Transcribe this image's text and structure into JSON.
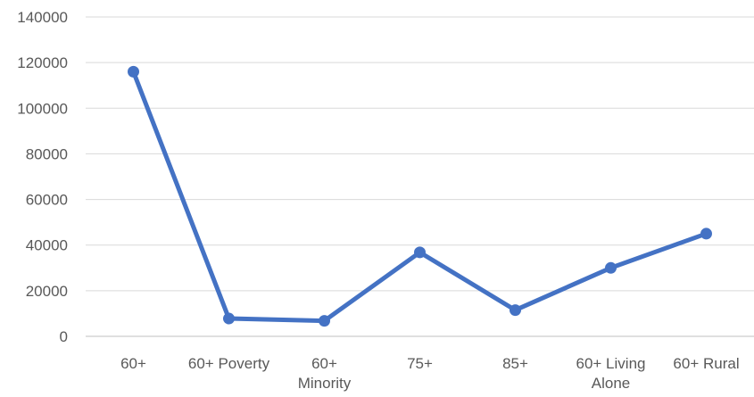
{
  "chart_data": {
    "type": "line",
    "title": "",
    "xlabel": "",
    "ylabel": "",
    "categories": [
      "60+",
      "60+ Poverty",
      "60+ Minority",
      "75+",
      "85+",
      "60+ Living Alone",
      "60+ Rural"
    ],
    "category_lines": [
      [
        "60+"
      ],
      [
        "60+ Poverty"
      ],
      [
        "60+",
        "Minority"
      ],
      [
        "75+"
      ],
      [
        "85+"
      ],
      [
        "60+ Living",
        "Alone"
      ],
      [
        "60+ Rural"
      ]
    ],
    "series": [
      {
        "values": [
          116000,
          7800,
          6800,
          36800,
          11500,
          30000,
          45000
        ],
        "color": "#4472c4"
      }
    ],
    "ylim": [
      0,
      140000
    ],
    "yticks": [
      0,
      20000,
      40000,
      60000,
      80000,
      100000,
      120000,
      140000
    ],
    "ytick_labels": [
      "0",
      "20000",
      "40000",
      "60000",
      "80000",
      "100000",
      "120000",
      "140000"
    ],
    "grid": true,
    "legend": "none"
  }
}
